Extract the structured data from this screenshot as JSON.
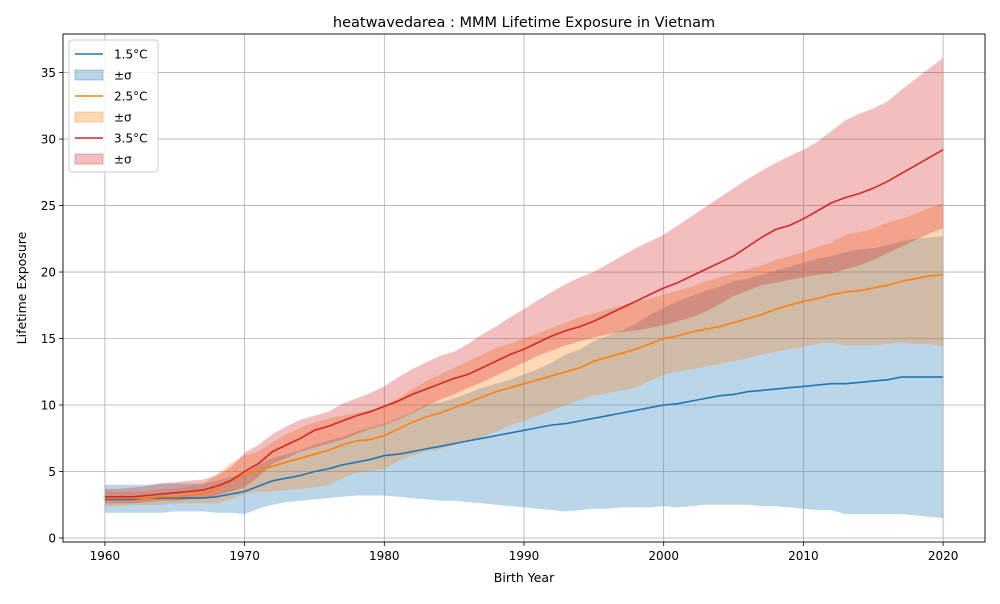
{
  "chart_data": {
    "type": "area",
    "title": "heatwavedarea : MMM Lifetime Exposure in Vietnam",
    "xlabel": "Birth Year",
    "ylabel": "Lifetime Exposure",
    "xlim": [
      1957,
      2023
    ],
    "ylim": [
      -0.3,
      37.9
    ],
    "xticks": [
      1960,
      1970,
      1980,
      1990,
      2000,
      2010,
      2020
    ],
    "yticks": [
      0,
      5,
      10,
      15,
      20,
      25,
      30,
      35
    ],
    "grid": true,
    "legend_position": "top-left",
    "x": [
      1960,
      1961,
      1962,
      1963,
      1964,
      1965,
      1966,
      1967,
      1968,
      1969,
      1970,
      1971,
      1972,
      1973,
      1974,
      1975,
      1976,
      1977,
      1978,
      1979,
      1980,
      1981,
      1982,
      1983,
      1984,
      1985,
      1986,
      1987,
      1988,
      1989,
      1990,
      1991,
      1992,
      1993,
      1994,
      1995,
      1996,
      1997,
      1998,
      1999,
      2000,
      2001,
      2002,
      2003,
      2004,
      2005,
      2006,
      2007,
      2008,
      2009,
      2010,
      2011,
      2012,
      2013,
      2014,
      2015,
      2016,
      2017,
      2018,
      2019,
      2020
    ],
    "series": [
      {
        "name": "1.5°C",
        "band_label": "±σ",
        "color": "#1f77b4",
        "fill": "#1f77b4",
        "values": [
          2.9,
          2.9,
          2.9,
          3.0,
          3.0,
          3.0,
          3.0,
          3.0,
          3.1,
          3.3,
          3.5,
          3.9,
          4.3,
          4.5,
          4.7,
          5.0,
          5.2,
          5.5,
          5.7,
          5.9,
          6.2,
          6.3,
          6.5,
          6.7,
          6.9,
          7.1,
          7.3,
          7.5,
          7.7,
          7.9,
          8.1,
          8.3,
          8.5,
          8.6,
          8.8,
          9.0,
          9.2,
          9.4,
          9.6,
          9.8,
          10.0,
          10.1,
          10.3,
          10.5,
          10.7,
          10.8,
          11.0,
          11.1,
          11.2,
          11.3,
          11.4,
          11.5,
          11.6,
          11.6,
          11.7,
          11.8,
          11.9,
          12.1,
          12.1,
          12.1,
          12.1
        ],
        "lower": [
          1.9,
          1.9,
          1.9,
          1.9,
          1.9,
          2.0,
          2.0,
          2.0,
          1.9,
          1.9,
          1.8,
          2.2,
          2.5,
          2.7,
          2.8,
          2.9,
          3.0,
          3.1,
          3.2,
          3.2,
          3.2,
          3.1,
          3.0,
          2.9,
          2.8,
          2.8,
          2.7,
          2.6,
          2.5,
          2.4,
          2.3,
          2.2,
          2.1,
          2.0,
          2.1,
          2.2,
          2.2,
          2.3,
          2.3,
          2.3,
          2.4,
          2.3,
          2.4,
          2.5,
          2.5,
          2.5,
          2.5,
          2.4,
          2.4,
          2.3,
          2.2,
          2.1,
          2.1,
          1.8,
          1.8,
          1.8,
          1.8,
          1.8,
          1.7,
          1.6,
          1.5
        ],
        "upper": [
          4.0,
          4.0,
          4.0,
          4.0,
          4.1,
          4.1,
          4.1,
          4.1,
          4.3,
          4.6,
          4.8,
          5.5,
          6.0,
          6.3,
          6.6,
          7.0,
          7.3,
          7.6,
          8.0,
          8.3,
          8.6,
          9.0,
          9.5,
          10.0,
          10.2,
          10.5,
          10.9,
          11.3,
          11.6,
          11.9,
          12.3,
          12.7,
          13.2,
          13.8,
          14.2,
          14.8,
          15.2,
          15.6,
          16.1,
          16.8,
          17.3,
          17.8,
          18.2,
          18.6,
          18.9,
          19.3,
          19.5,
          19.8,
          20.1,
          20.4,
          20.7,
          21.0,
          21.2,
          21.5,
          21.7,
          21.8,
          22.0,
          22.3,
          22.5,
          22.6,
          22.7
        ]
      },
      {
        "name": "2.5°C",
        "band_label": "±σ",
        "color": "#ff7f0e",
        "fill": "#ff7f0e",
        "values": [
          3.0,
          3.0,
          3.0,
          3.0,
          3.1,
          3.1,
          3.2,
          3.3,
          3.7,
          4.3,
          4.8,
          5.1,
          5.4,
          5.7,
          6.0,
          6.3,
          6.6,
          7.0,
          7.3,
          7.4,
          7.7,
          8.2,
          8.7,
          9.1,
          9.4,
          9.8,
          10.2,
          10.6,
          11.0,
          11.3,
          11.6,
          11.9,
          12.2,
          12.5,
          12.8,
          13.3,
          13.6,
          13.9,
          14.2,
          14.6,
          15.0,
          15.2,
          15.5,
          15.7,
          15.9,
          16.2,
          16.5,
          16.8,
          17.2,
          17.5,
          17.8,
          18.0,
          18.3,
          18.5,
          18.6,
          18.8,
          19.0,
          19.3,
          19.5,
          19.7,
          19.8
        ],
        "lower": [
          2.4,
          2.4,
          2.5,
          2.5,
          2.5,
          2.6,
          2.6,
          2.6,
          2.6,
          2.9,
          3.3,
          3.5,
          3.5,
          3.6,
          3.7,
          3.8,
          4.0,
          4.5,
          4.9,
          5.0,
          5.2,
          5.8,
          6.2,
          6.5,
          6.7,
          7.0,
          7.3,
          7.6,
          8.0,
          8.5,
          8.8,
          9.2,
          9.6,
          10.0,
          10.4,
          10.7,
          10.9,
          11.1,
          11.3,
          11.8,
          12.3,
          12.5,
          12.7,
          12.9,
          13.1,
          13.3,
          13.5,
          13.8,
          14.0,
          14.2,
          14.4,
          14.6,
          14.7,
          14.5,
          14.5,
          14.5,
          14.6,
          14.7,
          14.6,
          14.6,
          14.4
        ],
        "upper": [
          3.5,
          3.5,
          3.5,
          3.5,
          3.7,
          3.7,
          3.9,
          4.0,
          4.8,
          5.6,
          6.2,
          6.5,
          7.2,
          7.8,
          8.3,
          8.7,
          9.0,
          9.2,
          9.4,
          9.6,
          10.0,
          10.5,
          11.2,
          11.8,
          12.3,
          12.8,
          13.3,
          13.8,
          14.3,
          14.6,
          15.0,
          15.4,
          15.8,
          16.2,
          16.6,
          16.9,
          17.2,
          17.5,
          17.8,
          18.0,
          18.3,
          18.6,
          18.9,
          19.3,
          19.6,
          19.9,
          20.2,
          20.5,
          20.9,
          21.2,
          21.5,
          21.9,
          22.2,
          22.8,
          23.0,
          23.3,
          23.7,
          24.0,
          24.4,
          24.8,
          25.2
        ]
      },
      {
        "name": "3.5°C",
        "band_label": "±σ",
        "color": "#d62728",
        "fill": "#d62728",
        "values": [
          3.1,
          3.1,
          3.1,
          3.2,
          3.3,
          3.4,
          3.5,
          3.6,
          3.9,
          4.3,
          5.0,
          5.6,
          6.5,
          7.0,
          7.5,
          8.1,
          8.4,
          8.8,
          9.2,
          9.5,
          9.9,
          10.3,
          10.8,
          11.2,
          11.6,
          12.0,
          12.3,
          12.8,
          13.3,
          13.8,
          14.2,
          14.7,
          15.2,
          15.6,
          15.9,
          16.3,
          16.8,
          17.3,
          17.8,
          18.3,
          18.8,
          19.2,
          19.7,
          20.2,
          20.7,
          21.2,
          21.9,
          22.6,
          23.2,
          23.5,
          24.0,
          24.6,
          25.2,
          25.6,
          25.9,
          26.3,
          26.8,
          27.4,
          28.0,
          28.6,
          29.2
        ],
        "lower": [
          2.6,
          2.6,
          2.6,
          2.7,
          2.8,
          2.8,
          2.9,
          3.0,
          3.2,
          3.5,
          3.8,
          4.6,
          5.6,
          6.0,
          6.5,
          6.8,
          7.1,
          7.4,
          7.8,
          8.2,
          8.5,
          8.9,
          9.4,
          9.9,
          10.4,
          10.8,
          11.3,
          11.7,
          12.2,
          12.7,
          13.2,
          13.7,
          14.1,
          14.5,
          14.8,
          15.1,
          15.3,
          15.5,
          15.6,
          15.8,
          16.0,
          16.3,
          16.6,
          17.0,
          17.6,
          18.2,
          18.6,
          19.0,
          19.2,
          19.4,
          19.6,
          19.8,
          19.9,
          20.2,
          20.5,
          20.9,
          21.4,
          21.9,
          22.4,
          22.9,
          23.3
        ],
        "upper": [
          3.7,
          3.7,
          3.8,
          3.9,
          4.1,
          4.2,
          4.3,
          4.4,
          4.7,
          5.3,
          6.4,
          7.0,
          7.8,
          8.4,
          8.9,
          9.2,
          9.5,
          10.1,
          10.5,
          10.9,
          11.4,
          12.1,
          12.7,
          13.2,
          13.7,
          14.0,
          14.6,
          15.3,
          15.9,
          16.6,
          17.2,
          17.9,
          18.5,
          19.1,
          19.6,
          20.0,
          20.6,
          21.2,
          21.8,
          22.3,
          22.8,
          23.5,
          24.2,
          24.9,
          25.6,
          26.3,
          27.0,
          27.6,
          28.2,
          28.7,
          29.2,
          29.8,
          30.6,
          31.4,
          31.9,
          32.3,
          32.8,
          33.7,
          34.5,
          35.3,
          36.1
        ]
      }
    ]
  }
}
